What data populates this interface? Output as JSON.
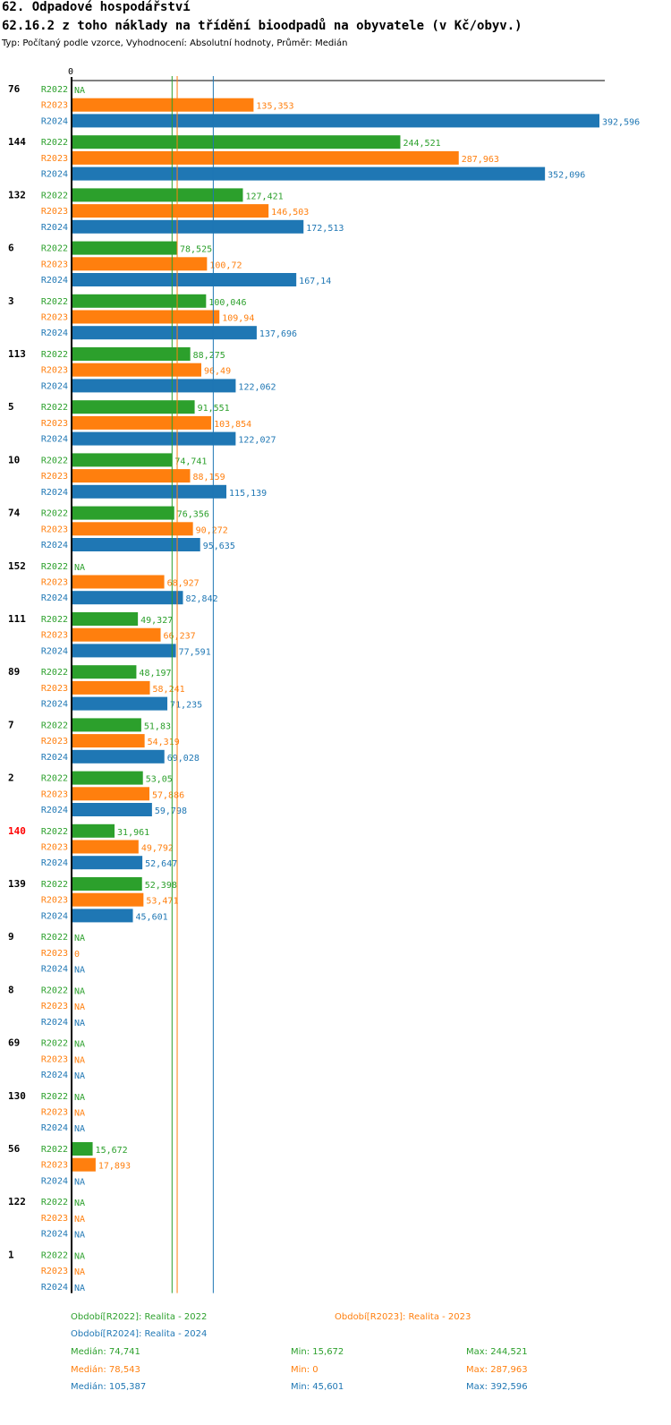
{
  "header": {
    "title": "62. Odpadové hospodářství",
    "subtitle": "62.16.2 z toho náklady na třídění bioodpadů na obyvatele (v Kč/obyv.)",
    "type_line": "Typ: Počítaný podle vzorce, Vyhodnocení: Absolutní hodnoty, Průměr: Medián"
  },
  "colors": {
    "R2022": "#2ca02c",
    "R2023": "#ff7f0e",
    "R2024": "#1f77b4",
    "highlight": "#ff0000"
  },
  "chart_data": {
    "type": "bar",
    "orientation": "horizontal",
    "title": "62.16.2 z toho náklady na třídění bioodpadů na obyvatele (v Kč/obyv.)",
    "axis_zero_label": "0",
    "xlim": [
      0,
      392.596
    ],
    "series_names": [
      "R2022",
      "R2023",
      "R2024"
    ],
    "highlight_category": "140",
    "medians": {
      "R2022": 74.741,
      "R2023": 78.543,
      "R2024": 105.387
    },
    "groups": [
      {
        "id": "76",
        "values": [
          null,
          135.353,
          392.596
        ],
        "labels": [
          "NA",
          "135,353",
          "392,596"
        ]
      },
      {
        "id": "144",
        "values": [
          244.521,
          287.963,
          352.096
        ],
        "labels": [
          "244,521",
          "287,963",
          "352,096"
        ]
      },
      {
        "id": "132",
        "values": [
          127.421,
          146.503,
          172.513
        ],
        "labels": [
          "127,421",
          "146,503",
          "172,513"
        ]
      },
      {
        "id": "6",
        "values": [
          78.525,
          100.72,
          167.14
        ],
        "labels": [
          "78,525",
          "100,72",
          "167,14"
        ]
      },
      {
        "id": "3",
        "values": [
          100.046,
          109.94,
          137.696
        ],
        "labels": [
          "100,046",
          "109,94",
          "137,696"
        ]
      },
      {
        "id": "113",
        "values": [
          88.275,
          96.49,
          122.062
        ],
        "labels": [
          "88,275",
          "96,49",
          "122,062"
        ]
      },
      {
        "id": "5",
        "values": [
          91.551,
          103.854,
          122.027
        ],
        "labels": [
          "91,551",
          "103,854",
          "122,027"
        ]
      },
      {
        "id": "10",
        "values": [
          74.741,
          88.159,
          115.139
        ],
        "labels": [
          "74,741",
          "88,159",
          "115,139"
        ]
      },
      {
        "id": "74",
        "values": [
          76.356,
          90.272,
          95.635
        ],
        "labels": [
          "76,356",
          "90,272",
          "95,635"
        ]
      },
      {
        "id": "152",
        "values": [
          null,
          68.927,
          82.842
        ],
        "labels": [
          "NA",
          "68,927",
          "82,842"
        ]
      },
      {
        "id": "111",
        "values": [
          49.327,
          66.237,
          77.591
        ],
        "labels": [
          "49,327",
          "66,237",
          "77,591"
        ]
      },
      {
        "id": "89",
        "values": [
          48.197,
          58.241,
          71.235
        ],
        "labels": [
          "48,197",
          "58,241",
          "71,235"
        ]
      },
      {
        "id": "7",
        "values": [
          51.83,
          54.319,
          69.028
        ],
        "labels": [
          "51,83",
          "54,319",
          "69,028"
        ]
      },
      {
        "id": "2",
        "values": [
          53.05,
          57.886,
          59.798
        ],
        "labels": [
          "53,05",
          "57,886",
          "59,798"
        ]
      },
      {
        "id": "140",
        "values": [
          31.961,
          49.792,
          52.647
        ],
        "labels": [
          "31,961",
          "49,792",
          "52,647"
        ]
      },
      {
        "id": "139",
        "values": [
          52.398,
          53.471,
          45.601
        ],
        "labels": [
          "52,398",
          "53,471",
          "45,601"
        ]
      },
      {
        "id": "9",
        "values": [
          null,
          0,
          null
        ],
        "labels": [
          "NA",
          "0",
          "NA"
        ]
      },
      {
        "id": "8",
        "values": [
          null,
          null,
          null
        ],
        "labels": [
          "NA",
          "NA",
          "NA"
        ]
      },
      {
        "id": "69",
        "values": [
          null,
          null,
          null
        ],
        "labels": [
          "NA",
          "NA",
          "NA"
        ]
      },
      {
        "id": "130",
        "values": [
          null,
          null,
          null
        ],
        "labels": [
          "NA",
          "NA",
          "NA"
        ]
      },
      {
        "id": "56",
        "values": [
          15.672,
          17.893,
          null
        ],
        "labels": [
          "15,672",
          "17,893",
          "NA"
        ]
      },
      {
        "id": "122",
        "values": [
          null,
          null,
          null
        ],
        "labels": [
          "NA",
          "NA",
          "NA"
        ]
      },
      {
        "id": "1",
        "values": [
          null,
          null,
          null
        ],
        "labels": [
          "NA",
          "NA",
          "NA"
        ]
      }
    ]
  },
  "legend": {
    "periods": [
      {
        "key": "R2022",
        "text": "Období[R2022]: Realita - 2022"
      },
      {
        "key": "R2023",
        "text": "Období[R2023]: Realita - 2023"
      },
      {
        "key": "R2024",
        "text": "Období[R2024]: Realita - 2024"
      }
    ],
    "stats": [
      {
        "key": "R2022",
        "median": "Medián: 74,741",
        "min": "Min: 15,672",
        "max": "Max: 244,521"
      },
      {
        "key": "R2023",
        "median": "Medián: 78,543",
        "min": "Min: 0",
        "max": "Max: 287,963"
      },
      {
        "key": "R2024",
        "median": "Medián: 105,387",
        "min": "Min: 45,601",
        "max": "Max: 392,596"
      }
    ]
  }
}
